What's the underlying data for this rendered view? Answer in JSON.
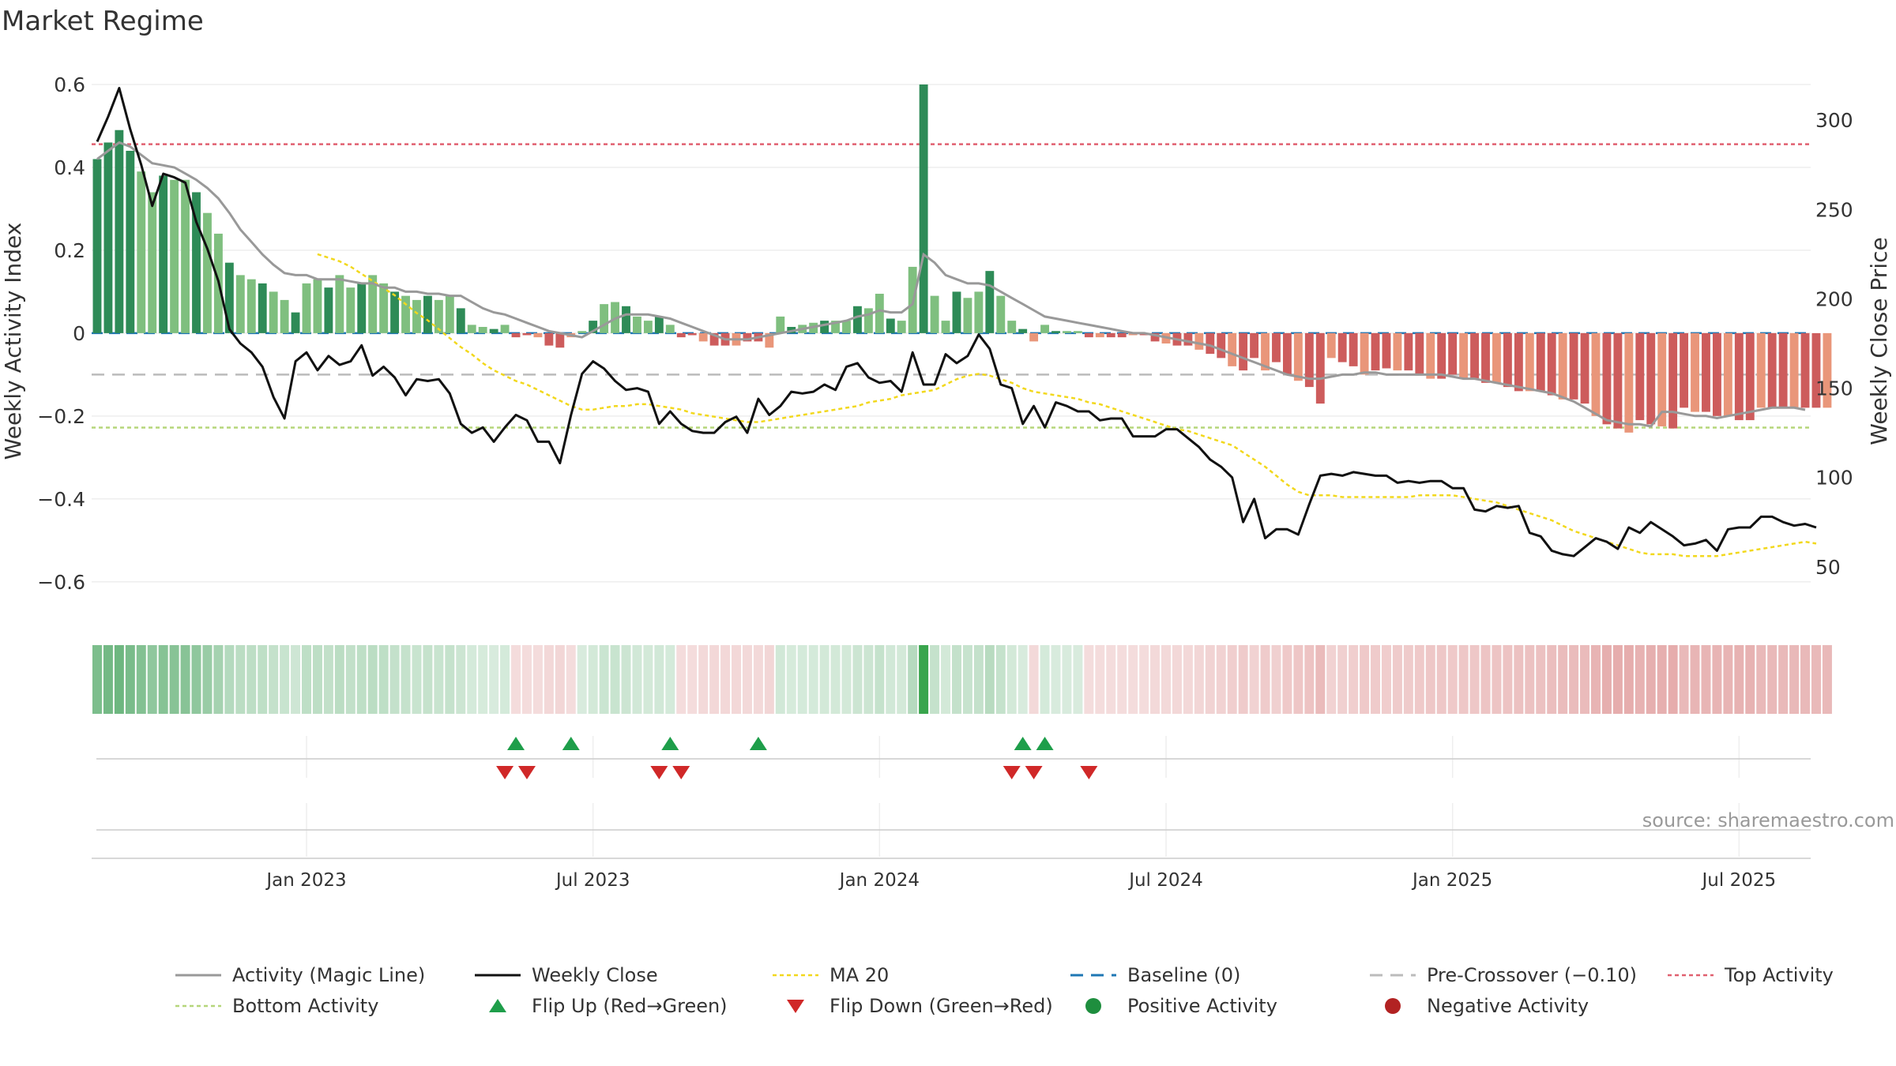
{
  "chart_data": {
    "type": "bar",
    "title": "Market Regime",
    "ylabel_left": "Weekly Activity Index",
    "ylabel_right": "Weekly Close Price",
    "source": "source: sharemaestro.com",
    "ylim_left": [
      -0.65,
      0.6
    ],
    "ylim_right": [
      30,
      320
    ],
    "left_ticks": [
      {
        "v": 0.6,
        "t": "0.6"
      },
      {
        "v": 0.4,
        "t": "0.4"
      },
      {
        "v": 0.2,
        "t": "0.2"
      },
      {
        "v": 0,
        "t": "0"
      },
      {
        "v": -0.2,
        "t": "−0.2"
      },
      {
        "v": -0.4,
        "t": "−0.4"
      },
      {
        "v": -0.6,
        "t": "−0.6"
      }
    ],
    "right_ticks": [
      {
        "v": 300,
        "t": "300"
      },
      {
        "v": 250,
        "t": "250"
      },
      {
        "v": 200,
        "t": "200"
      },
      {
        "v": 150,
        "t": "150"
      },
      {
        "v": 100,
        "t": "100"
      },
      {
        "v": 50,
        "t": "50"
      }
    ],
    "x_ticks": [
      {
        "week": 19,
        "t": "Jan 2023"
      },
      {
        "week": 45,
        "t": "Jul 2023"
      },
      {
        "week": 71,
        "t": "Jan 2024"
      },
      {
        "week": 97,
        "t": "Jul 2024"
      },
      {
        "week": 123,
        "t": "Jan 2025"
      },
      {
        "week": 149,
        "t": "Jul 2025"
      }
    ],
    "x_range": [
      -0.5,
      155.5
    ],
    "reference_lines": {
      "top_activity": 0.456,
      "bottom_activity": -0.228,
      "pre_crossover": -0.1,
      "baseline": 0
    },
    "activity": [
      0.42,
      0.46,
      0.49,
      0.44,
      0.39,
      0.34,
      0.38,
      0.37,
      0.37,
      0.34,
      0.29,
      0.24,
      0.17,
      0.14,
      0.13,
      0.12,
      0.1,
      0.08,
      0.05,
      0.12,
      0.13,
      0.11,
      0.14,
      0.11,
      0.12,
      0.14,
      0.12,
      0.1,
      0.09,
      0.08,
      0.09,
      0.08,
      0.09,
      0.06,
      0.02,
      0.015,
      0.01,
      0.02,
      -0.01,
      -0.005,
      -0.01,
      -0.03,
      -0.035,
      -0.01,
      0.005,
      0.03,
      0.07,
      0.075,
      0.065,
      0.04,
      0.03,
      0.04,
      0.02,
      -0.01,
      -0.005,
      -0.02,
      -0.03,
      -0.03,
      -0.03,
      -0.02,
      -0.02,
      -0.035,
      0.04,
      0.015,
      0.02,
      0.025,
      0.03,
      0.03,
      0.03,
      0.065,
      0.06,
      0.095,
      0.035,
      0.03,
      0.16,
      0.6,
      0.09,
      0.03,
      0.1,
      0.085,
      0.1,
      0.15,
      0.09,
      0.03,
      0.01,
      -0.02,
      0.02,
      0.005,
      0.005,
      0.005,
      -0.01,
      -0.01,
      -0.01,
      -0.01,
      -0.005,
      -0.005,
      -0.02,
      -0.025,
      -0.03,
      -0.03,
      -0.04,
      -0.05,
      -0.06,
      -0.08,
      -0.09,
      -0.06,
      -0.09,
      -0.07,
      -0.1,
      -0.115,
      -0.13,
      -0.17,
      -0.06,
      -0.07,
      -0.08,
      -0.1,
      -0.09,
      -0.085,
      -0.09,
      -0.09,
      -0.1,
      -0.11,
      -0.11,
      -0.1,
      -0.11,
      -0.11,
      -0.12,
      -0.12,
      -0.13,
      -0.14,
      -0.14,
      -0.14,
      -0.15,
      -0.16,
      -0.16,
      -0.17,
      -0.2,
      -0.22,
      -0.23,
      -0.24,
      -0.21,
      -0.22,
      -0.225,
      -0.23,
      -0.18,
      -0.19,
      -0.19,
      -0.2,
      -0.2,
      -0.21,
      -0.21,
      -0.18,
      -0.18,
      -0.18,
      -0.18,
      -0.18,
      -0.18,
      -0.18
    ],
    "magic_line": [
      0.42,
      0.44,
      0.46,
      0.45,
      0.43,
      0.41,
      0.405,
      0.4,
      0.385,
      0.37,
      0.35,
      0.325,
      0.29,
      0.25,
      0.22,
      0.19,
      0.165,
      0.145,
      0.14,
      0.14,
      0.13,
      0.13,
      0.13,
      0.125,
      0.12,
      0.12,
      0.11,
      0.11,
      0.1,
      0.1,
      0.095,
      0.095,
      0.09,
      0.09,
      0.075,
      0.06,
      0.05,
      0.045,
      0.035,
      0.025,
      0.015,
      0.005,
      0.0,
      -0.005,
      -0.01,
      0.005,
      0.02,
      0.035,
      0.045,
      0.045,
      0.045,
      0.04,
      0.035,
      0.025,
      0.015,
      0.005,
      -0.005,
      -0.015,
      -0.015,
      -0.015,
      -0.01,
      -0.005,
      0.0,
      0.005,
      0.01,
      0.015,
      0.02,
      0.025,
      0.03,
      0.04,
      0.045,
      0.055,
      0.05,
      0.05,
      0.07,
      0.19,
      0.17,
      0.14,
      0.13,
      0.12,
      0.12,
      0.115,
      0.1,
      0.085,
      0.07,
      0.055,
      0.04,
      0.035,
      0.03,
      0.025,
      0.02,
      0.015,
      0.01,
      0.005,
      0.0,
      0.0,
      -0.005,
      -0.01,
      -0.015,
      -0.02,
      -0.025,
      -0.03,
      -0.04,
      -0.05,
      -0.06,
      -0.07,
      -0.08,
      -0.09,
      -0.1,
      -0.105,
      -0.11,
      -0.11,
      -0.105,
      -0.1,
      -0.1,
      -0.095,
      -0.095,
      -0.1,
      -0.1,
      -0.1,
      -0.1,
      -0.1,
      -0.1,
      -0.105,
      -0.11,
      -0.11,
      -0.115,
      -0.12,
      -0.125,
      -0.13,
      -0.135,
      -0.14,
      -0.145,
      -0.155,
      -0.165,
      -0.18,
      -0.195,
      -0.21,
      -0.215,
      -0.22,
      -0.22,
      -0.225,
      -0.19,
      -0.19,
      -0.195,
      -0.2,
      -0.2,
      -0.205,
      -0.2,
      -0.195,
      -0.19,
      -0.185,
      -0.18,
      -0.18,
      -0.18,
      -0.185
    ],
    "weekly_close": [
      288,
      302,
      318,
      295,
      275,
      252,
      270,
      268,
      265,
      243,
      228,
      210,
      183,
      175,
      170,
      162,
      145,
      133,
      165,
      170,
      160,
      168,
      163,
      165,
      174,
      157,
      162,
      156,
      146,
      155,
      154,
      155,
      147,
      130,
      125,
      128,
      120,
      128,
      135,
      132,
      120,
      120,
      108,
      135,
      158,
      165,
      161,
      154,
      149,
      150,
      148,
      130,
      137,
      130,
      126,
      125,
      125,
      131,
      134,
      125,
      144,
      135,
      140,
      148,
      147,
      148,
      152,
      149,
      162,
      164,
      156,
      153,
      154,
      148,
      170,
      152,
      152,
      169,
      164,
      168,
      180,
      172,
      152,
      150,
      130,
      140,
      128,
      142,
      140,
      137,
      137,
      132,
      133,
      133,
      123,
      123,
      123,
      127,
      127,
      122,
      117,
      110,
      106,
      100,
      75,
      88,
      66,
      71,
      71,
      68,
      85,
      101,
      102,
      101,
      103,
      102,
      101,
      101,
      97,
      98,
      97,
      98,
      98,
      94,
      94,
      82,
      81,
      84,
      83,
      84,
      69,
      67,
      59,
      57,
      56,
      61,
      66,
      64,
      60,
      72,
      69,
      75,
      71,
      67,
      62,
      63,
      65,
      59,
      71,
      72,
      72,
      78,
      78,
      75,
      73,
      74,
      72
    ],
    "ma20": [
      null,
      null,
      null,
      null,
      null,
      null,
      null,
      null,
      null,
      null,
      null,
      null,
      null,
      null,
      null,
      null,
      null,
      null,
      null,
      null,
      225,
      223,
      221,
      218,
      214,
      210,
      206,
      202,
      197,
      192,
      188,
      183,
      178,
      173,
      169,
      164,
      160,
      157,
      154,
      152,
      149,
      146,
      143,
      140,
      138,
      138,
      139,
      140,
      140,
      141,
      141,
      140,
      139,
      138,
      136,
      135,
      134,
      133,
      132,
      131,
      131,
      132,
      133,
      134,
      135,
      136,
      137,
      138,
      139,
      140,
      142,
      143,
      144,
      146,
      147,
      148,
      149,
      152,
      155,
      157,
      158,
      157,
      155,
      153,
      150,
      148,
      147,
      146,
      145,
      144,
      142,
      141,
      139,
      137,
      135,
      133,
      131,
      129,
      127,
      126,
      124,
      122,
      120,
      118,
      114,
      110,
      106,
      101,
      96,
      92,
      90,
      90,
      90,
      89,
      89,
      89,
      89,
      89,
      89,
      89,
      90,
      90,
      90,
      90,
      89,
      88,
      87,
      86,
      84,
      82,
      80,
      78,
      76,
      73,
      70,
      68,
      66,
      64,
      62,
      60,
      58,
      57,
      57,
      57,
      56,
      56,
      56,
      56,
      57,
      58,
      59,
      60,
      61,
      62,
      63,
      64,
      63
    ],
    "regime_strip_values": [
      0.42,
      0.46,
      0.49,
      0.44,
      0.39,
      0.34,
      0.38,
      0.37,
      0.37,
      0.34,
      0.29,
      0.24,
      0.17,
      0.14,
      0.13,
      0.12,
      0.1,
      0.08,
      0.05,
      0.12,
      0.13,
      0.11,
      0.14,
      0.11,
      0.12,
      0.14,
      0.12,
      0.1,
      0.09,
      0.08,
      0.09,
      0.08,
      0.09,
      0.06,
      0.02,
      0.015,
      0.01,
      0.02,
      -0.01,
      -0.005,
      -0.01,
      -0.03,
      -0.035,
      -0.01,
      0.005,
      0.03,
      0.07,
      0.075,
      0.065,
      0.04,
      0.03,
      0.04,
      0.02,
      -0.01,
      -0.005,
      -0.02,
      -0.03,
      -0.03,
      -0.03,
      -0.02,
      -0.02,
      -0.035,
      0.04,
      0.015,
      0.02,
      0.025,
      0.03,
      0.03,
      0.03,
      0.065,
      0.06,
      0.095,
      0.035,
      0.03,
      0.16,
      0.6,
      0.09,
      0.03,
      0.1,
      0.085,
      0.1,
      0.15,
      0.09,
      0.03,
      0.01,
      -0.02,
      0.02,
      0.005,
      0.005,
      0.005,
      -0.01,
      -0.01,
      -0.01,
      -0.01,
      -0.005,
      -0.005,
      -0.02,
      -0.025,
      -0.03,
      -0.03,
      -0.04,
      -0.05,
      -0.06,
      -0.08,
      -0.09,
      -0.06,
      -0.09,
      -0.07,
      -0.1,
      -0.115,
      -0.13,
      -0.17,
      -0.06,
      -0.07,
      -0.08,
      -0.1,
      -0.09,
      -0.085,
      -0.09,
      -0.09,
      -0.1,
      -0.11,
      -0.11,
      -0.1,
      -0.11,
      -0.11,
      -0.12,
      -0.12,
      -0.13,
      -0.14,
      -0.14,
      -0.14,
      -0.15,
      -0.16,
      -0.16,
      -0.17,
      -0.2,
      -0.22,
      -0.23,
      -0.24,
      -0.21,
      -0.22,
      -0.225,
      -0.23,
      -0.18,
      -0.19,
      -0.19,
      -0.2,
      -0.2,
      -0.21,
      -0.21,
      -0.18,
      -0.18,
      -0.18,
      -0.18,
      -0.18,
      -0.18,
      -0.18
    ],
    "flip_up_weeks": [
      38,
      43,
      52,
      60,
      84,
      86
    ],
    "flip_down_weeks": [
      37,
      39,
      51,
      53,
      83,
      85,
      90
    ],
    "colors": {
      "strong_positive": "#2e8b57",
      "positive": "#7fbf7f",
      "weak_negative": "#e9967a",
      "strong_negative": "#cd5c5c",
      "magic_line": "#999999",
      "weekly_close": "#111111",
      "ma20": "#f2d81d",
      "baseline": "#1f77b4",
      "pre_crossover": "#bbbbbb",
      "top_activity": "#e06070",
      "bottom_activity": "#b5d67a",
      "flip_up": "#1e9e4a",
      "flip_down": "#d02828",
      "positive_activity": "#1e8e3e",
      "negative_activity": "#b22222"
    },
    "legend": {
      "placement": "bottom",
      "items": [
        {
          "key": "magic",
          "label": "Activity (Magic Line)"
        },
        {
          "key": "close",
          "label": "Weekly Close"
        },
        {
          "key": "ma20",
          "label": "MA 20"
        },
        {
          "key": "baseline",
          "label": "Baseline (0)"
        },
        {
          "key": "precross",
          "label": "Pre-Crossover (−0.10)"
        },
        {
          "key": "top",
          "label": "Top Activity"
        },
        {
          "key": "bottom",
          "label": "Bottom Activity"
        },
        {
          "key": "flipup",
          "label": "Flip Up (Red→Green)"
        },
        {
          "key": "flipdown",
          "label": "Flip Down (Green→Red)"
        },
        {
          "key": "posact",
          "label": "Positive Activity"
        },
        {
          "key": "negact",
          "label": "Negative Activity"
        }
      ]
    }
  }
}
